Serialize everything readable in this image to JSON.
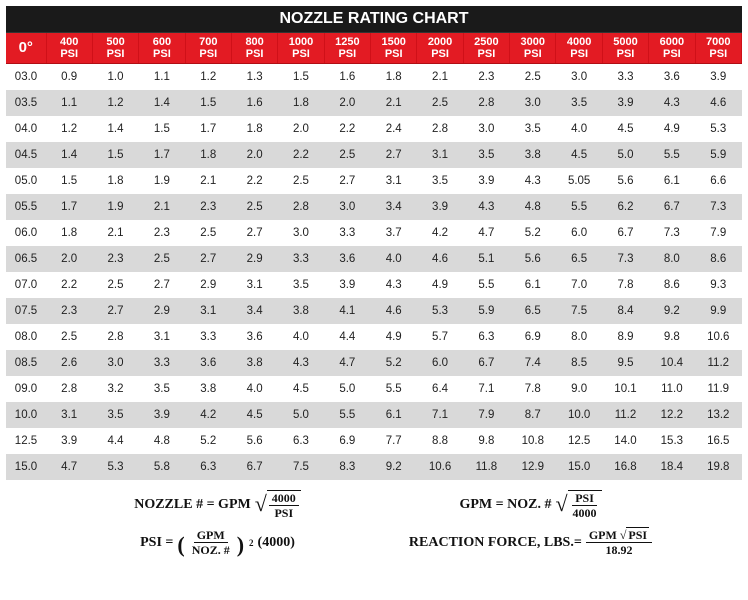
{
  "title": "NOZZLE RATING CHART",
  "corner": "0°",
  "psi_headers": [
    "400",
    "500",
    "600",
    "700",
    "800",
    "1000",
    "1250",
    "1500",
    "2000",
    "2500",
    "3000",
    "4000",
    "5000",
    "6000",
    "7000"
  ],
  "psi_unit": "PSI",
  "rows": [
    {
      "label": "03.0",
      "vals": [
        "0.9",
        "1.0",
        "1.1",
        "1.2",
        "1.3",
        "1.5",
        "1.6",
        "1.8",
        "2.1",
        "2.3",
        "2.5",
        "3.0",
        "3.3",
        "3.6",
        "3.9"
      ]
    },
    {
      "label": "03.5",
      "vals": [
        "1.1",
        "1.2",
        "1.4",
        "1.5",
        "1.6",
        "1.8",
        "2.0",
        "2.1",
        "2.5",
        "2.8",
        "3.0",
        "3.5",
        "3.9",
        "4.3",
        "4.6"
      ]
    },
    {
      "label": "04.0",
      "vals": [
        "1.2",
        "1.4",
        "1.5",
        "1.7",
        "1.8",
        "2.0",
        "2.2",
        "2.4",
        "2.8",
        "3.0",
        "3.5",
        "4.0",
        "4.5",
        "4.9",
        "5.3"
      ]
    },
    {
      "label": "04.5",
      "vals": [
        "1.4",
        "1.5",
        "1.7",
        "1.8",
        "2.0",
        "2.2",
        "2.5",
        "2.7",
        "3.1",
        "3.5",
        "3.8",
        "4.5",
        "5.0",
        "5.5",
        "5.9"
      ]
    },
    {
      "label": "05.0",
      "vals": [
        "1.5",
        "1.8",
        "1.9",
        "2.1",
        "2.2",
        "2.5",
        "2.7",
        "3.1",
        "3.5",
        "3.9",
        "4.3",
        "5.05",
        "5.6",
        "6.1",
        "6.6"
      ]
    },
    {
      "label": "05.5",
      "vals": [
        "1.7",
        "1.9",
        "2.1",
        "2.3",
        "2.5",
        "2.8",
        "3.0",
        "3.4",
        "3.9",
        "4.3",
        "4.8",
        "5.5",
        "6.2",
        "6.7",
        "7.3"
      ]
    },
    {
      "label": "06.0",
      "vals": [
        "1.8",
        "2.1",
        "2.3",
        "2.5",
        "2.7",
        "3.0",
        "3.3",
        "3.7",
        "4.2",
        "4.7",
        "5.2",
        "6.0",
        "6.7",
        "7.3",
        "7.9"
      ]
    },
    {
      "label": "06.5",
      "vals": [
        "2.0",
        "2.3",
        "2.5",
        "2.7",
        "2.9",
        "3.3",
        "3.6",
        "4.0",
        "4.6",
        "5.1",
        "5.6",
        "6.5",
        "7.3",
        "8.0",
        "8.6"
      ]
    },
    {
      "label": "07.0",
      "vals": [
        "2.2",
        "2.5",
        "2.7",
        "2.9",
        "3.1",
        "3.5",
        "3.9",
        "4.3",
        "4.9",
        "5.5",
        "6.1",
        "7.0",
        "7.8",
        "8.6",
        "9.3"
      ]
    },
    {
      "label": "07.5",
      "vals": [
        "2.3",
        "2.7",
        "2.9",
        "3.1",
        "3.4",
        "3.8",
        "4.1",
        "4.6",
        "5.3",
        "5.9",
        "6.5",
        "7.5",
        "8.4",
        "9.2",
        "9.9"
      ]
    },
    {
      "label": "08.0",
      "vals": [
        "2.5",
        "2.8",
        "3.1",
        "3.3",
        "3.6",
        "4.0",
        "4.4",
        "4.9",
        "5.7",
        "6.3",
        "6.9",
        "8.0",
        "8.9",
        "9.8",
        "10.6"
      ]
    },
    {
      "label": "08.5",
      "vals": [
        "2.6",
        "3.0",
        "3.3",
        "3.6",
        "3.8",
        "4.3",
        "4.7",
        "5.2",
        "6.0",
        "6.7",
        "7.4",
        "8.5",
        "9.5",
        "10.4",
        "11.2"
      ]
    },
    {
      "label": "09.0",
      "vals": [
        "2.8",
        "3.2",
        "3.5",
        "3.8",
        "4.0",
        "4.5",
        "5.0",
        "5.5",
        "6.4",
        "7.1",
        "7.8",
        "9.0",
        "10.1",
        "11.0",
        "11.9"
      ]
    },
    {
      "label": "10.0",
      "vals": [
        "3.1",
        "3.5",
        "3.9",
        "4.2",
        "4.5",
        "5.0",
        "5.5",
        "6.1",
        "7.1",
        "7.9",
        "8.7",
        "10.0",
        "11.2",
        "12.2",
        "13.2"
      ]
    },
    {
      "label": "12.5",
      "vals": [
        "3.9",
        "4.4",
        "4.8",
        "5.2",
        "5.6",
        "6.3",
        "6.9",
        "7.7",
        "8.8",
        "9.8",
        "10.8",
        "12.5",
        "14.0",
        "15.3",
        "16.5"
      ]
    },
    {
      "label": "15.0",
      "vals": [
        "4.7",
        "5.3",
        "5.8",
        "6.3",
        "6.7",
        "7.5",
        "8.3",
        "9.2",
        "10.6",
        "11.8",
        "12.9",
        "15.0",
        "16.8",
        "18.4",
        "19.8"
      ]
    }
  ],
  "formulas": {
    "f1": {
      "lhs": "NOZZLE # = GPM",
      "sqrt_num": "4000",
      "sqrt_den": "PSI"
    },
    "f2": {
      "lhs": "GPM = NOZ. #",
      "sqrt_num": "PSI",
      "sqrt_den": "4000"
    },
    "f3": {
      "lhs": "PSI =",
      "inner_num": "GPM",
      "inner_den": "NOZ. #",
      "exp": "2",
      "tail": "(4000)"
    },
    "f4": {
      "lhs": "REACTION FORCE, LBS.=",
      "num_a": "GPM",
      "num_b": "PSI",
      "den": "18.92"
    }
  },
  "colors": {
    "title_bg": "#1a1a1a",
    "header_bg": "#e31b23",
    "row_even_bg": "#ffffff",
    "row_odd_bg": "#d9d9d9",
    "text": "#222222"
  }
}
